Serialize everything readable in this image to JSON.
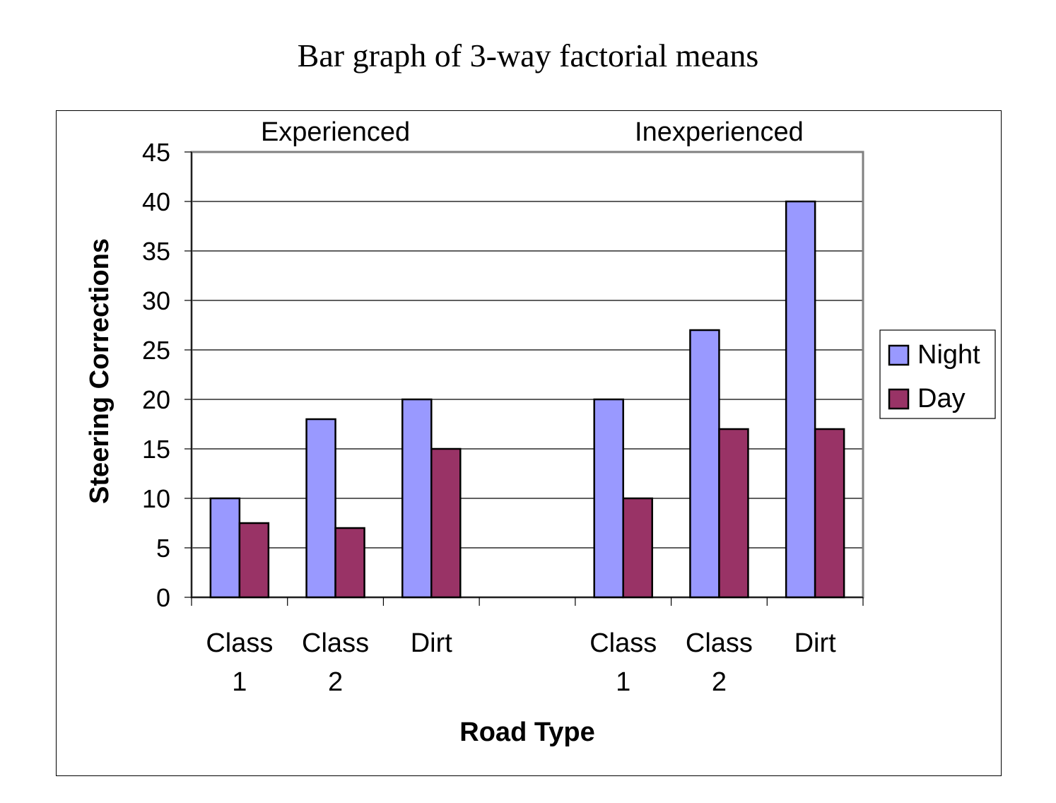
{
  "chart_data": {
    "type": "bar",
    "title": "Bar graph of 3-way factorial means",
    "ylabel": "Steering Corrections",
    "xlabel": "Road Type",
    "ylim": [
      0,
      45
    ],
    "yticks": [
      0,
      5,
      10,
      15,
      20,
      25,
      30,
      35,
      40,
      45
    ],
    "grid": true,
    "legend_position": "right",
    "groups": [
      "Experienced",
      "Inexperienced"
    ],
    "categories": [
      {
        "label": [
          "Class",
          "1"
        ],
        "group": "Experienced"
      },
      {
        "label": [
          "Class",
          "2"
        ],
        "group": "Experienced"
      },
      {
        "label": [
          "Dirt"
        ],
        "group": "Experienced"
      },
      {
        "label": [
          ""
        ],
        "group": ""
      },
      {
        "label": [
          "Class",
          "1"
        ],
        "group": "Inexperienced"
      },
      {
        "label": [
          "Class",
          "2"
        ],
        "group": "Inexperienced"
      },
      {
        "label": [
          "Dirt"
        ],
        "group": "Inexperienced"
      }
    ],
    "series": [
      {
        "name": "Night",
        "color": "#9999ff",
        "values": [
          10,
          18,
          20,
          null,
          20,
          27,
          40
        ]
      },
      {
        "name": "Day",
        "color": "#993366",
        "values": [
          7.5,
          7,
          15,
          null,
          10,
          17,
          17
        ]
      }
    ]
  }
}
